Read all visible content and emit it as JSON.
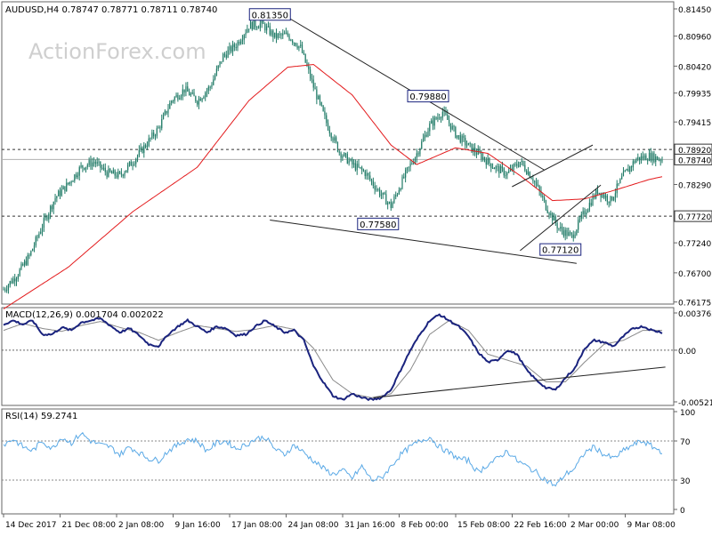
{
  "colors": {
    "candle": "#1f7a66",
    "ma": "#e31a1c",
    "macd": "#1a237e",
    "signal": "#8a8a8a",
    "rsi": "#5aa9e6",
    "trend": "#222222",
    "grid": "#666666",
    "label_bg": "#ffffff",
    "label_border": "#1a237e"
  },
  "header": {
    "ohlc_text": "AUDUSD,H4  0.78747 0.78771 0.78711 0.78740",
    "watermark": "ActionForex.com"
  },
  "chart_data": [
    {
      "type": "candlestick",
      "symbol": "AUDUSD",
      "timeframe": "H4",
      "ylim": [
        0.7617,
        0.8145
      ],
      "y_ticks": [
        "0.81450",
        "0.80960",
        "0.80420",
        "0.79935",
        "0.79415",
        "0.78920",
        "0.78740",
        "0.78290",
        "0.77720",
        "0.77240",
        "0.76700",
        "0.76175"
      ],
      "tick_values": [
        0.8145,
        0.8096,
        0.8042,
        0.79935,
        0.79415,
        0.7892,
        0.7874,
        0.7829,
        0.7772,
        0.7724,
        0.767,
        0.76175
      ],
      "x_labels": [
        "14 Dec 2017",
        "21 Dec 08:00",
        "2 Jan 08:00",
        "9 Jan 16:00",
        "17 Jan 08:00",
        "24 Jan 08:00",
        "31 Jan 16:00",
        "8 Feb 00:00",
        "15 Feb 08:00",
        "22 Feb 16:00",
        "2 Mar 00:00",
        "9 Mar 08:00"
      ],
      "price_key": [
        [
          0,
          0.764
        ],
        [
          8,
          0.7665
        ],
        [
          16,
          0.77
        ],
        [
          24,
          0.7755
        ],
        [
          32,
          0.7805
        ],
        [
          40,
          0.783
        ],
        [
          48,
          0.786
        ],
        [
          56,
          0.787
        ],
        [
          64,
          0.785
        ],
        [
          72,
          0.7845
        ],
        [
          80,
          0.787
        ],
        [
          88,
          0.79
        ],
        [
          96,
          0.793
        ],
        [
          104,
          0.798
        ],
        [
          112,
          0.8
        ],
        [
          120,
          0.798
        ],
        [
          128,
          0.8005
        ],
        [
          136,
          0.806
        ],
        [
          144,
          0.808
        ],
        [
          152,
          0.8115
        ],
        [
          160,
          0.8118
        ],
        [
          168,
          0.8095
        ],
        [
          176,
          0.8098
        ],
        [
          184,
          0.8075
        ],
        [
          192,
          0.8005
        ],
        [
          200,
          0.794
        ],
        [
          208,
          0.7888
        ],
        [
          216,
          0.7865
        ],
        [
          224,
          0.785
        ],
        [
          232,
          0.7818
        ],
        [
          240,
          0.779
        ],
        [
          248,
          0.7842
        ],
        [
          256,
          0.7885
        ],
        [
          264,
          0.7935
        ],
        [
          272,
          0.796
        ],
        [
          280,
          0.792
        ],
        [
          288,
          0.7898
        ],
        [
          296,
          0.788
        ],
        [
          304,
          0.786
        ],
        [
          312,
          0.7848
        ],
        [
          320,
          0.787
        ],
        [
          328,
          0.784
        ],
        [
          336,
          0.779
        ],
        [
          344,
          0.775
        ],
        [
          352,
          0.7735
        ],
        [
          360,
          0.778
        ],
        [
          368,
          0.7818
        ],
        [
          376,
          0.78
        ],
        [
          384,
          0.7845
        ],
        [
          392,
          0.7875
        ],
        [
          400,
          0.788
        ],
        [
          408,
          0.7874
        ]
      ],
      "ma_key": [
        [
          0,
          0.7605
        ],
        [
          40,
          0.768
        ],
        [
          80,
          0.778
        ],
        [
          120,
          0.786
        ],
        [
          152,
          0.798
        ],
        [
          176,
          0.804
        ],
        [
          192,
          0.8045
        ],
        [
          216,
          0.799
        ],
        [
          240,
          0.79
        ],
        [
          256,
          0.7865
        ],
        [
          280,
          0.7895
        ],
        [
          300,
          0.7885
        ],
        [
          320,
          0.7845
        ],
        [
          340,
          0.78
        ],
        [
          360,
          0.7803
        ],
        [
          380,
          0.782
        ],
        [
          400,
          0.7838
        ],
        [
          408,
          0.7843
        ]
      ],
      "labels": [
        {
          "text": "0.81350",
          "value": 0.8135,
          "bar": 165
        },
        {
          "text": "0.79880",
          "value": 0.7988,
          "bar": 263
        },
        {
          "text": "0.77580",
          "value": 0.7758,
          "bar": 232
        },
        {
          "text": "0.77120",
          "value": 0.7712,
          "bar": 345
        }
      ],
      "dashed_levels": [
        0.7892,
        0.7772
      ],
      "current_price": 0.7874,
      "highlight_ticks": [
        "0.78920",
        "0.78740",
        "0.77720"
      ],
      "trendlines": [
        {
          "from": [
            173,
            0.8135
          ],
          "to": [
            335,
            0.7855
          ]
        },
        {
          "from": [
            165,
            0.7765
          ],
          "to": [
            355,
            0.7687
          ]
        },
        {
          "from": [
            315,
            0.7825
          ],
          "to": [
            365,
            0.79
          ]
        },
        {
          "from": [
            320,
            0.771
          ],
          "to": [
            370,
            0.7828
          ]
        }
      ]
    },
    {
      "type": "line",
      "title": "MACD(12,26,9) 0.001704 0.002022",
      "y_ticks": [
        "0.003762",
        "0.00",
        "-0.005216"
      ],
      "tick_values": [
        0.003762,
        0.0,
        -0.005216
      ],
      "ylim": [
        -0.005216,
        0.003762
      ],
      "series": [
        {
          "key": [
            [
              0,
              0.0026
            ],
            [
              6,
              0.003
            ],
            [
              12,
              0.0026
            ],
            [
              18,
              0.003
            ],
            [
              24,
              0.0016
            ],
            [
              30,
              0.0016
            ],
            [
              36,
              0.0023
            ],
            [
              42,
              0.002
            ],
            [
              48,
              0.0028
            ],
            [
              54,
              0.003
            ],
            [
              60,
              0.0032
            ],
            [
              66,
              0.0025
            ],
            [
              72,
              0.0018
            ],
            [
              78,
              0.0022
            ],
            [
              84,
              0.0015
            ],
            [
              90,
              0.0006
            ],
            [
              96,
              0.0004
            ],
            [
              102,
              0.0016
            ],
            [
              108,
              0.0024
            ],
            [
              114,
              0.003
            ],
            [
              120,
              0.0024
            ],
            [
              126,
              0.0018
            ],
            [
              132,
              0.0024
            ],
            [
              138,
              0.0022
            ],
            [
              144,
              0.0015
            ],
            [
              150,
              0.0016
            ],
            [
              156,
              0.0024
            ],
            [
              162,
              0.003
            ],
            [
              168,
              0.0024
            ],
            [
              174,
              0.0018
            ],
            [
              180,
              0.002
            ],
            [
              186,
              0.001
            ],
            [
              192,
              -0.0016
            ],
            [
              198,
              -0.0032
            ],
            [
              204,
              -0.0046
            ],
            [
              210,
              -0.005
            ],
            [
              216,
              -0.0044
            ],
            [
              222,
              -0.0048
            ],
            [
              228,
              -0.005
            ],
            [
              234,
              -0.0048
            ],
            [
              240,
              -0.004
            ],
            [
              246,
              -0.002
            ],
            [
              252,
              0.0
            ],
            [
              258,
              0.0016
            ],
            [
              264,
              0.003
            ],
            [
              270,
              0.0036
            ],
            [
              276,
              0.003
            ],
            [
              282,
              0.0024
            ],
            [
              288,
              0.0014
            ],
            [
              294,
              -0.0002
            ],
            [
              300,
              -0.0012
            ],
            [
              306,
              -0.001
            ],
            [
              312,
              0.0
            ],
            [
              318,
              -0.0004
            ],
            [
              324,
              -0.002
            ],
            [
              330,
              -0.003
            ],
            [
              336,
              -0.0038
            ],
            [
              342,
              -0.004
            ],
            [
              348,
              -0.0028
            ],
            [
              354,
              -0.0018
            ],
            [
              360,
              0.0002
            ],
            [
              366,
              0.001
            ],
            [
              372,
              0.0008
            ],
            [
              378,
              0.0004
            ],
            [
              384,
              0.0014
            ],
            [
              390,
              0.0022
            ],
            [
              396,
              0.0024
            ],
            [
              402,
              0.002
            ],
            [
              408,
              0.0018
            ]
          ]
        },
        {
          "key": [
            [
              0,
              0.002
            ],
            [
              12,
              0.0027
            ],
            [
              24,
              0.0022
            ],
            [
              36,
              0.0019
            ],
            [
              48,
              0.0025
            ],
            [
              60,
              0.0029
            ],
            [
              72,
              0.0023
            ],
            [
              84,
              0.0018
            ],
            [
              96,
              0.001
            ],
            [
              108,
              0.0018
            ],
            [
              120,
              0.0025
            ],
            [
              132,
              0.0022
            ],
            [
              144,
              0.0019
            ],
            [
              156,
              0.0021
            ],
            [
              168,
              0.0025
            ],
            [
              180,
              0.0021
            ],
            [
              192,
              0.0002
            ],
            [
              204,
              -0.003
            ],
            [
              216,
              -0.0044
            ],
            [
              228,
              -0.0048
            ],
            [
              240,
              -0.0044
            ],
            [
              252,
              -0.002
            ],
            [
              264,
              0.0016
            ],
            [
              276,
              0.003
            ],
            [
              288,
              0.002
            ],
            [
              300,
              -0.0004
            ],
            [
              312,
              -0.001
            ],
            [
              324,
              -0.0016
            ],
            [
              336,
              -0.0032
            ],
            [
              348,
              -0.0032
            ],
            [
              360,
              -0.0012
            ],
            [
              372,
              0.0006
            ],
            [
              384,
              0.001
            ],
            [
              396,
              0.002
            ],
            [
              408,
              0.002
            ]
          ]
        }
      ],
      "trendlines": [
        {
          "from": [
            229,
            -0.0048
          ],
          "to": [
            410,
            -0.0017
          ]
        }
      ]
    },
    {
      "type": "line",
      "title": "RSI(14) 59.2741",
      "y_ticks": [
        "100",
        "70",
        "30",
        "0"
      ],
      "tick_values": [
        100,
        70,
        30,
        0
      ],
      "ylim": [
        0,
        100
      ],
      "series": [
        {
          "key": [
            [
              0,
              66
            ],
            [
              6,
              72
            ],
            [
              12,
              64
            ],
            [
              18,
              60
            ],
            [
              24,
              70
            ],
            [
              30,
              62
            ],
            [
              36,
              74
            ],
            [
              42,
              68
            ],
            [
              48,
              78
            ],
            [
              54,
              70
            ],
            [
              60,
              66
            ],
            [
              66,
              64
            ],
            [
              72,
              56
            ],
            [
              78,
              64
            ],
            [
              84,
              58
            ],
            [
              90,
              52
            ],
            [
              96,
              50
            ],
            [
              102,
              60
            ],
            [
              108,
              66
            ],
            [
              114,
              72
            ],
            [
              120,
              70
            ],
            [
              126,
              60
            ],
            [
              132,
              68
            ],
            [
              138,
              70
            ],
            [
              144,
              62
            ],
            [
              150,
              66
            ],
            [
              156,
              72
            ],
            [
              162,
              74
            ],
            [
              168,
              62
            ],
            [
              174,
              56
            ],
            [
              180,
              66
            ],
            [
              186,
              58
            ],
            [
              192,
              50
            ],
            [
              198,
              42
            ],
            [
              204,
              36
            ],
            [
              210,
              40
            ],
            [
              216,
              32
            ],
            [
              222,
              44
            ],
            [
              228,
              30
            ],
            [
              234,
              32
            ],
            [
              240,
              44
            ],
            [
              246,
              56
            ],
            [
              252,
              64
            ],
            [
              258,
              70
            ],
            [
              264,
              74
            ],
            [
              270,
              64
            ],
            [
              276,
              58
            ],
            [
              282,
              52
            ],
            [
              288,
              50
            ],
            [
              294,
              38
            ],
            [
              300,
              46
            ],
            [
              306,
              52
            ],
            [
              312,
              60
            ],
            [
              318,
              50
            ],
            [
              324,
              44
            ],
            [
              330,
              38
            ],
            [
              336,
              30
            ],
            [
              342,
              24
            ],
            [
              348,
              36
            ],
            [
              354,
              42
            ],
            [
              360,
              58
            ],
            [
              366,
              64
            ],
            [
              372,
              56
            ],
            [
              378,
              52
            ],
            [
              384,
              60
            ],
            [
              390,
              66
            ],
            [
              396,
              70
            ],
            [
              402,
              64
            ],
            [
              408,
              59
            ]
          ]
        }
      ],
      "levels": [
        70,
        30
      ]
    }
  ]
}
